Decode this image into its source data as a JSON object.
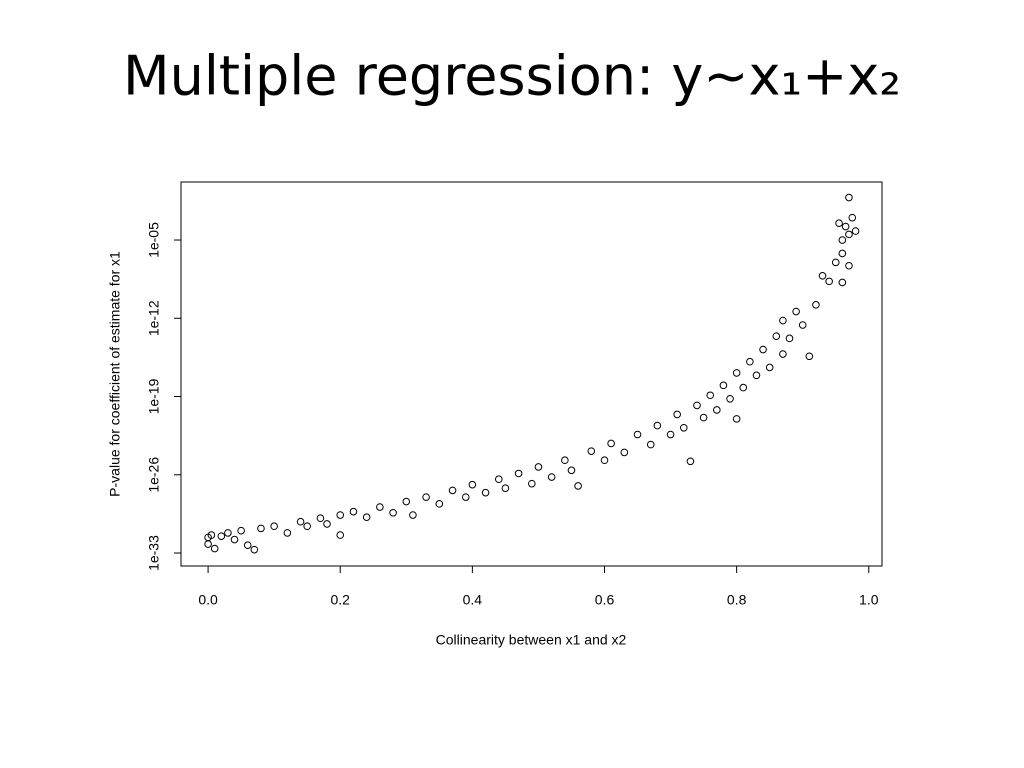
{
  "chart_data": {
    "type": "scatter",
    "title": "Multiple regression: y~x₁+x₂",
    "x_label": "Collinearity between x1 and x2",
    "y_label": "P-value for coefficient of estimate for x1",
    "color": "#000000",
    "log_y": true,
    "xlim": [
      -0.041,
      1.02
    ],
    "ylim": [
      6.9e-35,
      1.55
    ],
    "xticks": [
      {
        "value": 0,
        "label": "0.0"
      },
      0.2,
      0.4,
      0.6,
      0.8,
      {
        "value": 1,
        "label": "1.0"
      }
    ],
    "yticks": [
      1e-33,
      1e-26,
      1e-19,
      1e-12,
      {
        "value": 1e-05,
        "label": "1e-05"
      }
    ],
    "x": [
      0,
      0,
      0.005,
      0.01,
      0.02,
      0.03,
      0.04,
      0.05,
      0.06,
      0.07,
      0.08,
      0.1,
      0.12,
      0.14,
      0.15,
      0.17,
      0.18,
      0.2,
      0.2,
      0.22,
      0.24,
      0.26,
      0.28,
      0.3,
      0.31,
      0.33,
      0.35,
      0.37,
      0.39,
      0.4,
      0.42,
      0.44,
      0.45,
      0.47,
      0.49,
      0.5,
      0.52,
      0.54,
      0.55,
      0.56,
      0.58,
      0.6,
      0.61,
      0.63,
      0.65,
      0.67,
      0.68,
      0.7,
      0.71,
      0.72,
      0.73,
      0.74,
      0.75,
      0.76,
      0.77,
      0.78,
      0.79,
      0.8,
      0.8,
      0.81,
      0.82,
      0.83,
      0.84,
      0.85,
      0.86,
      0.87,
      0.87,
      0.88,
      0.89,
      0.9,
      0.91,
      0.92,
      0.93,
      0.94,
      0.95,
      0.96,
      0.96,
      0.965,
      0.97,
      0.97,
      0.97,
      0.975,
      0.98,
      0.955,
      0.96
    ],
    "values": [
      2.5e-32,
      6.3e-33,
      4e-32,
      2.5e-33,
      3.2e-32,
      6.3e-32,
      1.6e-32,
      1e-31,
      5e-33,
      2e-33,
      1.6e-31,
      2.5e-31,
      6.3e-32,
      6.3e-31,
      2.5e-31,
      1.3e-30,
      4e-31,
      2.5e-30,
      4e-32,
      5e-30,
      1.6e-30,
      1.3e-29,
      4e-30,
      4e-29,
      2.5e-30,
      1e-28,
      2.5e-29,
      4e-28,
      1e-28,
      1.3e-27,
      2.5e-28,
      4e-27,
      6.3e-28,
      1.3e-26,
      1.6e-27,
      5e-26,
      6.3e-27,
      2e-25,
      2.5e-26,
      1e-27,
      1.3e-24,
      2e-25,
      6.3e-24,
      1e-24,
      4e-23,
      5e-24,
      2.5e-22,
      4e-23,
      2.5e-21,
      1.6e-22,
      1.6e-25,
      1.6e-20,
      1.3e-21,
      1.3e-19,
      6.3e-21,
      1e-18,
      6.3e-20,
      1.3e-17,
      1e-21,
      6.3e-19,
      1.3e-16,
      7.9e-18,
      1.6e-15,
      4e-17,
      2.5e-14,
      6.3e-16,
      6.3e-13,
      1.6e-14,
      4e-12,
      2.5e-13,
      4e-16,
      1.6e-11,
      6.3e-09,
      2e-09,
      1e-07,
      1e-05,
      6.3e-07,
      0.00016,
      0.063,
      3.2e-05,
      5e-08,
      0.001,
      6.3e-05,
      0.00032,
      1.6e-09
    ]
  }
}
